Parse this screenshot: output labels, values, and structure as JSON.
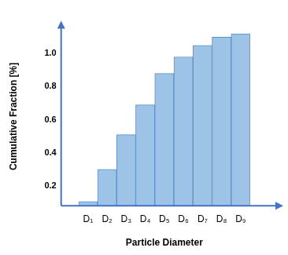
{
  "chart_data": {
    "type": "bar",
    "x_label": "Particle Diameter",
    "y_label": "Cumulative Fraction [%]",
    "categories": [
      "D₁",
      "D₂",
      "D₃",
      "D₄",
      "D₅",
      "D₆",
      "D₇",
      "D₈",
      "D₉"
    ],
    "values": [
      0.105,
      0.3,
      0.51,
      0.69,
      0.88,
      0.98,
      1.05,
      1.1,
      1.12
    ],
    "color": "#9dc3e6",
    "ylim": [
      0.08,
      1.16
    ],
    "yticks": [
      0.2,
      0.4,
      0.6,
      0.8,
      {
        "value": 1,
        "label": "1.0"
      }
    ],
    "grid": false
  }
}
